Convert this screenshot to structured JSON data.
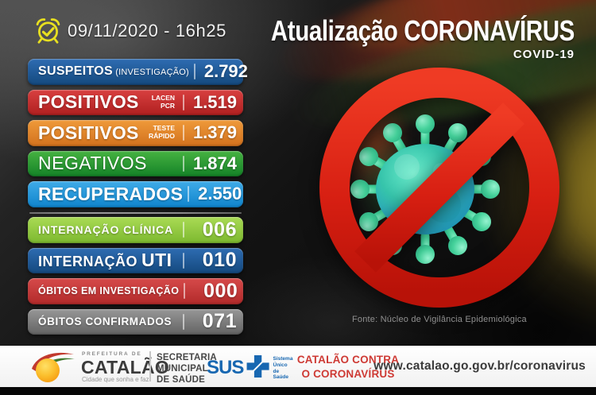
{
  "chart_data": {
    "type": "table",
    "title": "Atualização CORONAVÍRUS",
    "subtitle": "COVID-19",
    "as_of": "09/11/2020 - 16h25",
    "categories": [
      "SUSPEITOS (INVESTIGAÇÃO)",
      "POSITIVOS LACEN PCR",
      "POSITIVOS TESTE RÁPIDO",
      "NEGATIVOS",
      "RECUPERADOS",
      "INTERNAÇÃO CLÍNICA",
      "INTERNAÇÃO UTI",
      "ÓBITOS EM INVESTIGAÇÃO",
      "ÓBITOS CONFIRMADOS"
    ],
    "values": [
      2792,
      1519,
      1379,
      1874,
      2550,
      6,
      10,
      0,
      71
    ],
    "source": "Fonte: Núcleo de Vigilância Epidemiológica"
  },
  "header": {
    "datetime": "09/11/2020 - 16h25",
    "title": "Atualização CORONAVÍRUS",
    "subtitle": "COVID-19",
    "clock_icon_color": "#e8e020"
  },
  "stats": {
    "items": [
      {
        "id": "suspeitos",
        "label": "SUSPEITOS",
        "sub_inline": "(INVESTIGAÇÃO)",
        "value": "2.792",
        "colors": [
          "#2e6cb2",
          "#14497e"
        ],
        "label_class": "lbl-susp",
        "value_class": ""
      },
      {
        "id": "positivos-lacen-pcr",
        "label": "POSITIVOS",
        "sub_lines": [
          "LACEN",
          "PCR"
        ],
        "value": "1.519",
        "colors": [
          "#d84040",
          "#b02020"
        ],
        "label_class": "lbl-big",
        "value_class": ""
      },
      {
        "id": "positivos-teste-rapido",
        "label": "POSITIVOS",
        "sub_lines": [
          "TESTE",
          "RÁPIDO"
        ],
        "value": "1.379",
        "colors": [
          "#ef9a3a",
          "#d2711d"
        ],
        "label_class": "lbl-big",
        "value_class": ""
      },
      {
        "id": "negativos",
        "label": "NEGATIVOS",
        "value": "1.874",
        "colors": [
          "#46b241",
          "#148227"
        ],
        "label_class": "lbl-big-light",
        "value_class": ""
      },
      {
        "id": "recuperados",
        "label": "RECUPERADOS",
        "value": "2.550",
        "colors": [
          "#3fabe8",
          "#0f84cc"
        ],
        "label_class": "lbl-big",
        "value_class": ""
      },
      {
        "id": "internacao-clinica",
        "group_break": true,
        "label": "INTERNAÇÃO CLÍNICA",
        "value": "006",
        "colors": [
          "#aadb55",
          "#7cb82f"
        ],
        "label_class": "lbl-int",
        "value_class": "v-xl"
      },
      {
        "id": "internacao-uti",
        "label": "INTERNAÇÃO",
        "suffix": "UTI",
        "value": "010",
        "colors": [
          "#2e6cb2",
          "#14497e"
        ],
        "label_class": "lbl-uti",
        "value_class": "v-xl"
      },
      {
        "id": "obitos-em-investigacao",
        "label": "ÓBITOS EM INVESTIGAÇÃO",
        "value": "000",
        "colors": [
          "#d64a4a",
          "#b22a2a"
        ],
        "label_class": "lbl-xs",
        "value_class": "v-xl"
      },
      {
        "id": "obitos-confirmados",
        "label": "ÓBITOS CONFIRMADOS",
        "value": "071",
        "colors": [
          "#979797",
          "#636363"
        ],
        "label_class": "lbl-sm",
        "value_class": "v-xl"
      }
    ]
  },
  "hero": {
    "source_note": "Fonte: Núcleo de Vigilância Epidemiológica",
    "ban_color": "#d8281c",
    "virus_body_color": "#36c4ab",
    "virus_spike_color": "#44d19a"
  },
  "footer": {
    "prefeitura_small": "PREFEITURA DE",
    "prefeitura_name": "CATALÃO",
    "prefeitura_tagline": "Cidade que sonha e faz.",
    "secretaria_lines": [
      "SECRETARIA",
      "MUNICIPAL",
      "DE SAÚDE"
    ],
    "sus_label": "SUS",
    "sus_sub_lines": [
      "Sistema",
      "Único",
      "de Saúde"
    ],
    "sus_color": "#1767b1",
    "campaign_line1": "CATALÃO CONTRA",
    "campaign_line2": "O CORONAVÍRUS",
    "campaign_color": "#ce3a34",
    "url": "www.catalao.go.gov.br/coronavirus"
  }
}
